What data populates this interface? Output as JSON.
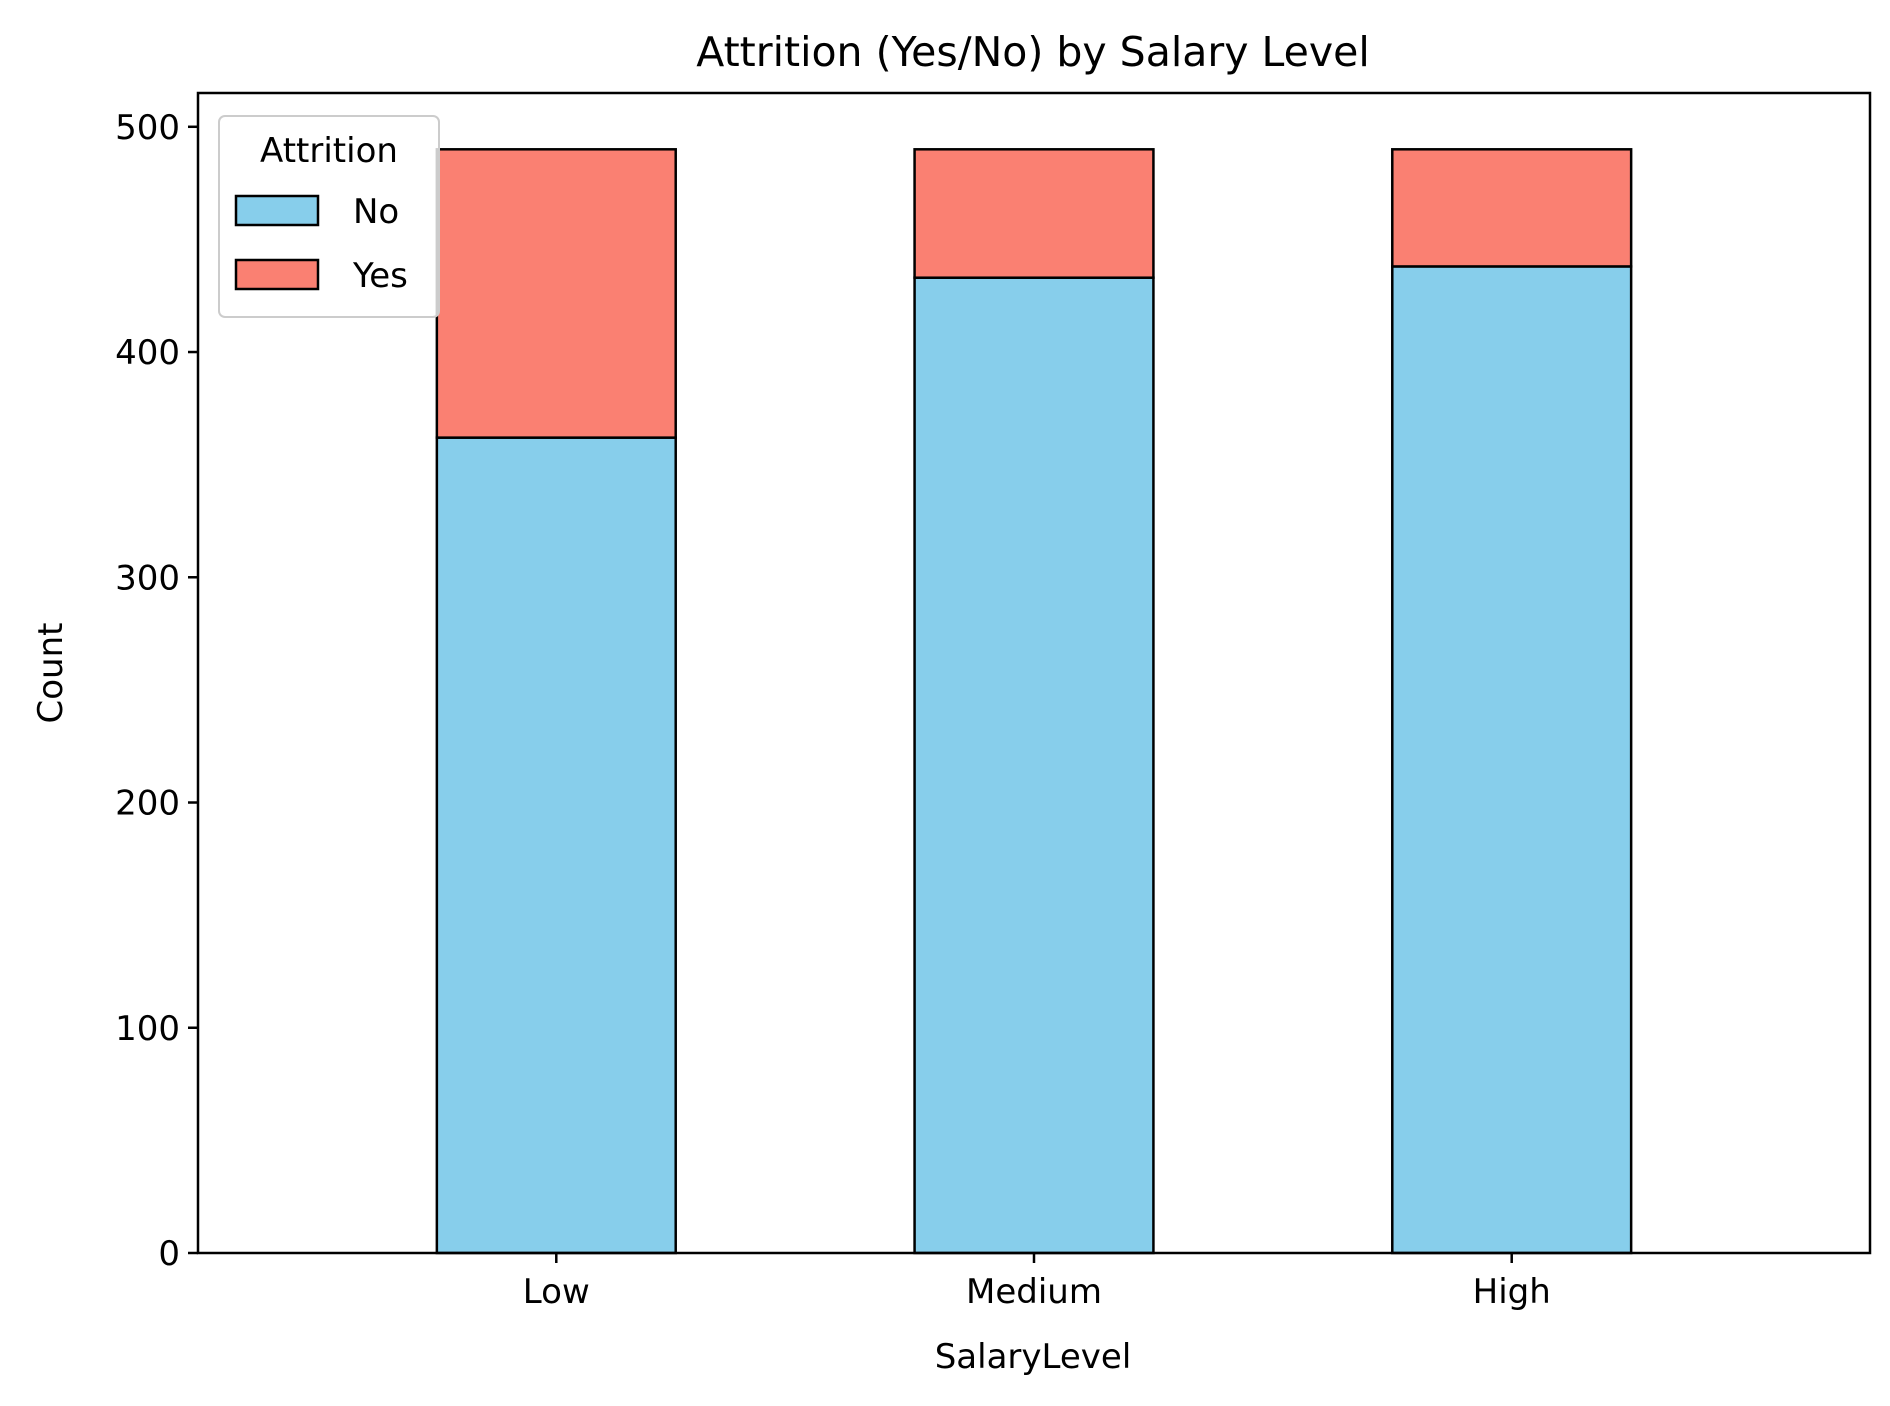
{
  "chart_data": {
    "type": "bar",
    "stacked": true,
    "title": "Attrition (Yes/No) by Salary Level",
    "xlabel": "SalaryLevel",
    "ylabel": "Count",
    "categories": [
      "Low",
      "Medium",
      "High"
    ],
    "series": [
      {
        "name": "No",
        "values": [
          362,
          433,
          438
        ],
        "color": "#87CEEB"
      },
      {
        "name": "Yes",
        "values": [
          128,
          57,
          52
        ],
        "color": "#FA8072"
      }
    ],
    "ylim": [
      0,
      515
    ],
    "yticks": [
      0,
      100,
      200,
      300,
      400,
      500
    ],
    "grid": false,
    "legend": {
      "title": "Attrition",
      "position": "top-left"
    },
    "edge_color": "#000000"
  }
}
